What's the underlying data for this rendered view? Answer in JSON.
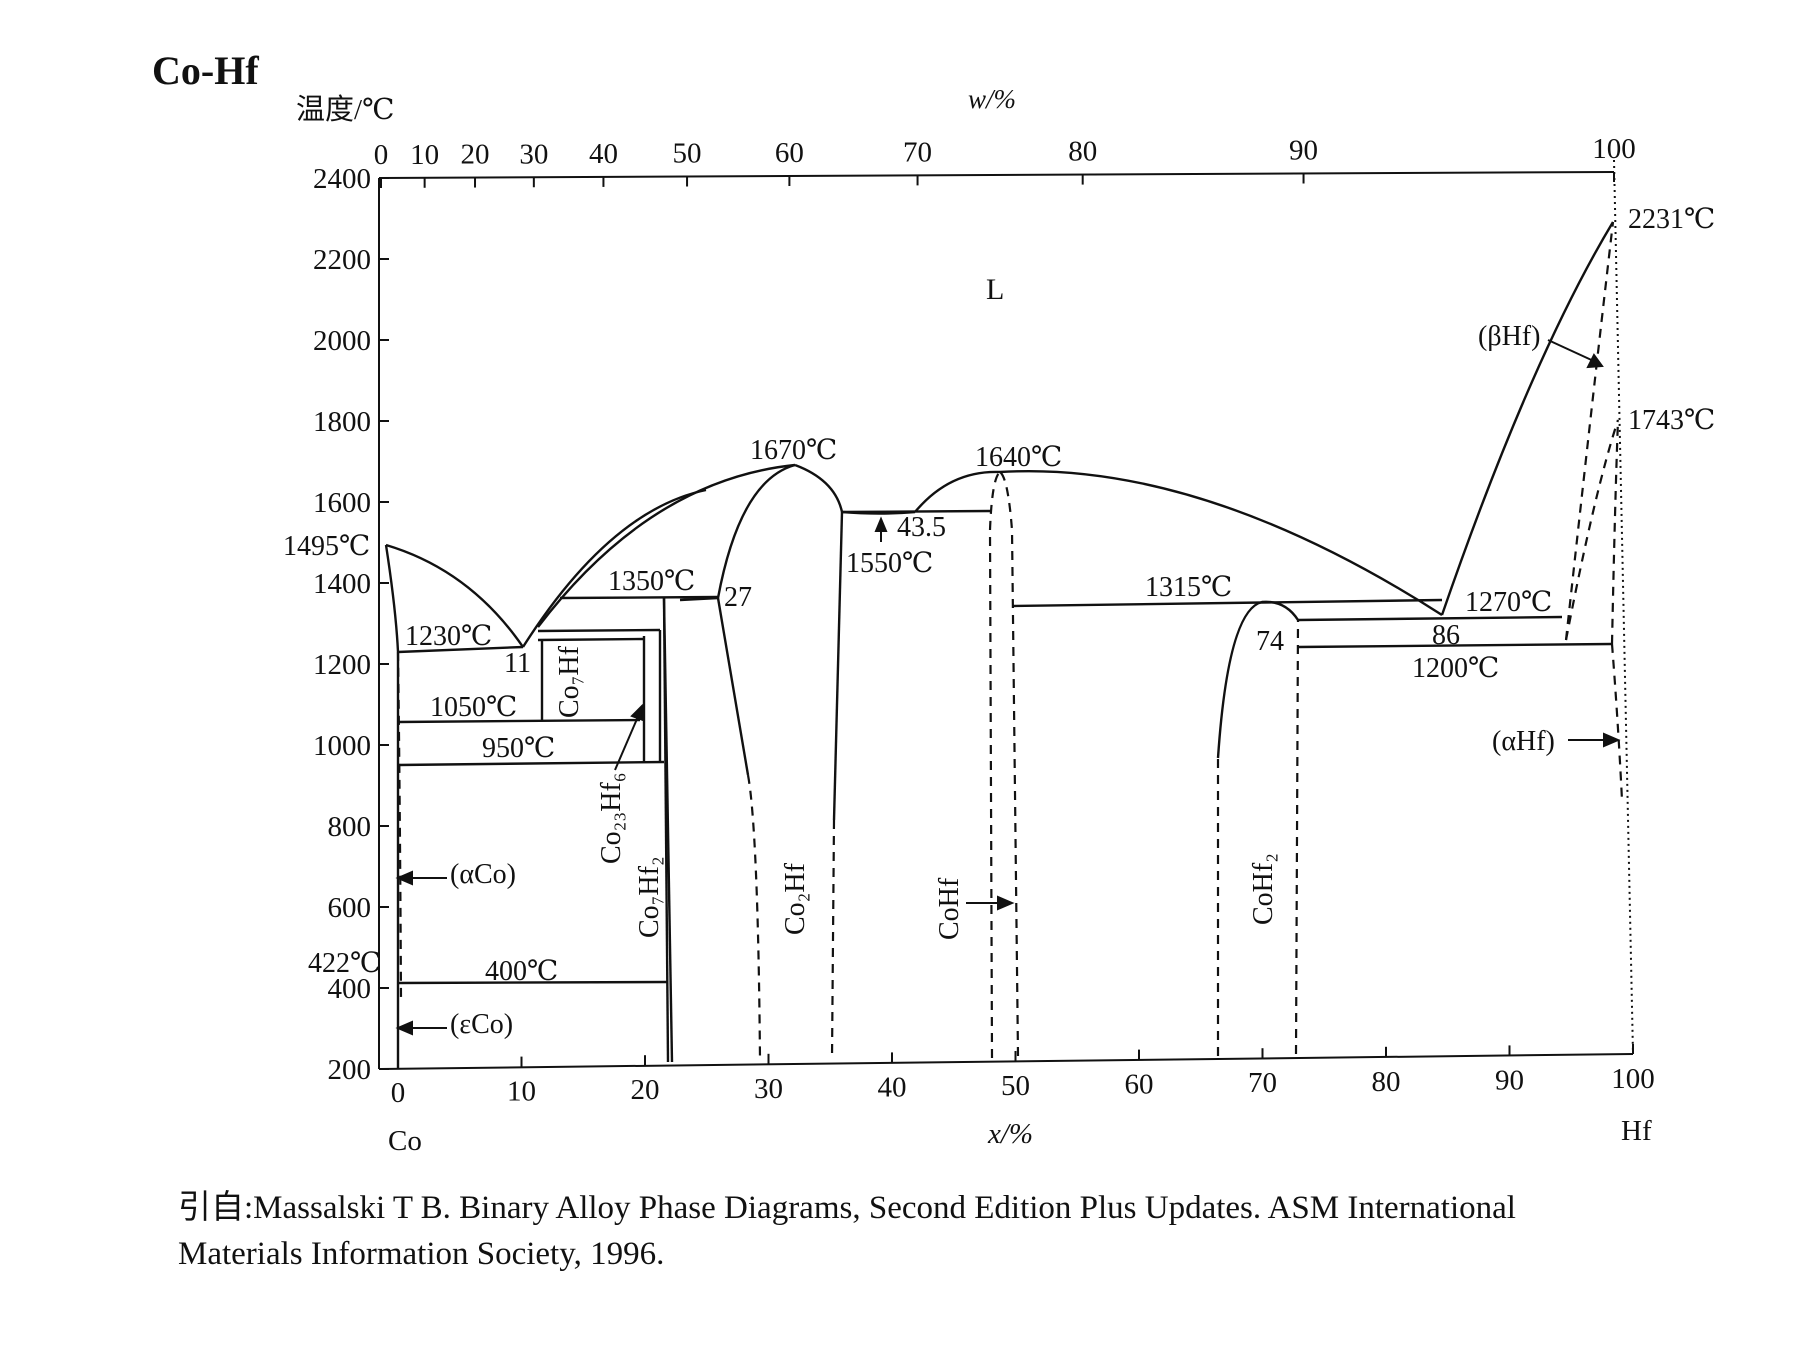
{
  "chart_data": {
    "type": "phase-diagram",
    "title": "Co-Hf",
    "ylabel": "温度/℃",
    "xlabel_top": "w/%",
    "xlabel_bottom": "x/%",
    "ylim": [
      200,
      2400
    ],
    "xlim": [
      0,
      100
    ],
    "yticks": [
      "200",
      "400",
      "600",
      "800",
      "1000",
      "1200",
      "1400",
      "1600",
      "1800",
      "2000",
      "2200",
      "2400"
    ],
    "xticks_bottom": [
      "0",
      "10",
      "20",
      "30",
      "40",
      "50",
      "60",
      "70",
      "80",
      "90",
      "100"
    ],
    "xticks_top": [
      "0",
      "10",
      "20",
      "30",
      "40",
      "50",
      "60",
      "70",
      "80",
      "90",
      "100"
    ],
    "element_left": "Co",
    "element_right": "Hf",
    "phase_labels": {
      "liquid": "L",
      "alpha_co": "(αCo)",
      "epsilon_co": "(εCo)",
      "beta_hf": "(βHf)",
      "alpha_hf": "(αHf)",
      "co7hf": "Co₇Hf",
      "co23hf6": "Co₂₃Hf₆",
      "co7hf2": "Co₇Hf₂",
      "co2hf": "Co₂Hf",
      "cohf": "CoHf",
      "cohf2": "CoHf₂"
    },
    "annotations": {
      "t1495": "1495℃",
      "t1230": "1230℃",
      "t1050": "1050℃",
      "t950": "950℃",
      "t422": "422℃",
      "t400": "400℃",
      "t1350": "1350℃",
      "t1670": "1670℃",
      "t1550": "1550℃",
      "t1640": "1640℃",
      "t1315": "1315℃",
      "t1270": "1270℃",
      "t1200": "1200℃",
      "t2231": "2231℃",
      "t1743": "1743℃",
      "c11": "11",
      "c27": "27",
      "c43_5": "43.5",
      "c74": "74",
      "c86": "86"
    },
    "invariants": [
      {
        "temperature": 1495,
        "x": 0,
        "label": "Co melting point"
      },
      {
        "temperature": 1230,
        "x": 11,
        "type": "eutectic"
      },
      {
        "temperature": 1350,
        "x": 27
      },
      {
        "temperature": 1670,
        "x": 33,
        "type": "congruent"
      },
      {
        "temperature": 1550,
        "x": 43.5,
        "type": "eutectic"
      },
      {
        "temperature": 1640,
        "x": 50,
        "type": "congruent"
      },
      {
        "temperature": 1315,
        "x": 74
      },
      {
        "temperature": 1270,
        "x": 86,
        "type": "eutectic"
      },
      {
        "temperature": 1200,
        "x": 99
      },
      {
        "temperature": 2231,
        "x": 100,
        "label": "Hf melting point"
      },
      {
        "temperature": 1743,
        "x": 100,
        "label": "Hf allotropic"
      },
      {
        "temperature": 1050,
        "x": 0
      },
      {
        "temperature": 950,
        "x": 0
      },
      {
        "temperature": 422,
        "x": 0,
        "label": "Co allotropic"
      },
      {
        "temperature": 400,
        "x": 0
      }
    ]
  },
  "caption": {
    "line1": "引自:Massalski T B. Binary Alloy Phase Diagrams, Second Edition Plus Updates. ASM International",
    "line2": "Materials Information Society, 1996."
  }
}
